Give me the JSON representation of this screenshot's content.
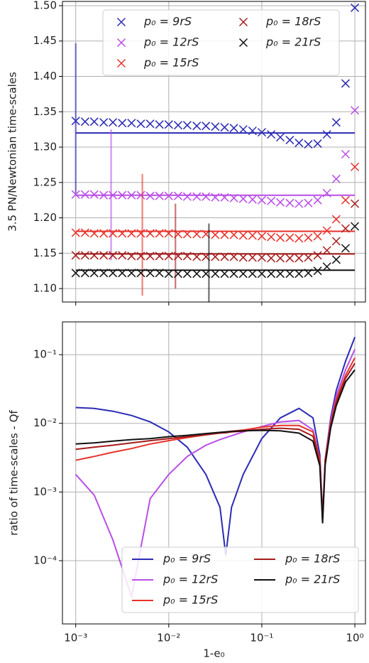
{
  "chart_data": [
    {
      "type": "scatter",
      "ylabel": "3.5 PN/Newtonian time-scales",
      "log_x": true,
      "grid": true,
      "legend": "upper center",
      "xlim": [
        0.00072,
        1.3
      ],
      "ylim": [
        1.081,
        1.506
      ],
      "yticks": [
        {
          "value": 1.1,
          "label": "1.10"
        },
        {
          "value": 1.15,
          "label": "1.15"
        },
        {
          "value": 1.2,
          "label": "1.20"
        },
        {
          "value": 1.25,
          "label": "1.25"
        },
        {
          "value": 1.3,
          "label": "1.30"
        },
        {
          "value": 1.35,
          "label": "1.35"
        },
        {
          "value": 1.4,
          "label": "1.40"
        },
        {
          "value": 1.45,
          "label": "1.45"
        },
        {
          "value": 1.5,
          "label": "1.50"
        }
      ],
      "xticks": [
        0.001,
        0.01,
        0.1,
        1
      ],
      "x": [
        0.001,
        0.00126,
        0.00158,
        0.002,
        0.00251,
        0.00316,
        0.00398,
        0.00501,
        0.00631,
        0.00794,
        0.01,
        0.0126,
        0.0158,
        0.02,
        0.0251,
        0.0316,
        0.0398,
        0.0501,
        0.0631,
        0.0794,
        0.1,
        0.126,
        0.158,
        0.2,
        0.251,
        0.316,
        0.398,
        0.501,
        0.631,
        0.794,
        1.0
      ],
      "series": [
        {
          "name": "p₀ = 9rS",
          "color": "#2b2bb5",
          "ref_value": 1.32,
          "range": {
            "x": 0.001,
            "low": 1.235,
            "high": 1.447
          },
          "values": [
            1.337,
            1.336,
            1.336,
            1.335,
            1.335,
            1.334,
            1.334,
            1.333,
            1.333,
            1.332,
            1.332,
            1.331,
            1.331,
            1.33,
            1.33,
            1.329,
            1.328,
            1.327,
            1.325,
            1.323,
            1.321,
            1.318,
            1.314,
            1.31,
            1.306,
            1.304,
            1.305,
            1.318,
            1.335,
            1.39,
            1.497
          ]
        },
        {
          "name": "p₀ = 12rS",
          "color": "#b94ee6",
          "ref_value": 1.232,
          "range": {
            "x": 0.0024,
            "low": 1.14,
            "high": 1.325
          },
          "values": [
            1.233,
            1.233,
            1.233,
            1.232,
            1.232,
            1.232,
            1.232,
            1.232,
            1.231,
            1.231,
            1.231,
            1.231,
            1.23,
            1.23,
            1.23,
            1.229,
            1.229,
            1.228,
            1.227,
            1.226,
            1.225,
            1.224,
            1.222,
            1.221,
            1.22,
            1.221,
            1.225,
            1.235,
            1.255,
            1.29,
            1.352
          ]
        },
        {
          "name": "p₀ = 15rS",
          "color": "#e8322a",
          "ref_value": 1.181,
          "range": {
            "x": 0.0052,
            "low": 1.09,
            "high": 1.262
          },
          "values": [
            1.179,
            1.179,
            1.178,
            1.178,
            1.178,
            1.178,
            1.178,
            1.178,
            1.178,
            1.178,
            1.178,
            1.177,
            1.177,
            1.177,
            1.177,
            1.176,
            1.176,
            1.176,
            1.175,
            1.175,
            1.174,
            1.173,
            1.172,
            1.172,
            1.171,
            1.172,
            1.174,
            1.182,
            1.198,
            1.225,
            1.272
          ]
        },
        {
          "name": "p₀ = 18rS",
          "color": "#a61c1c",
          "ref_value": 1.149,
          "range": {
            "x": 0.0118,
            "low": 1.1,
            "high": 1.22
          },
          "values": [
            1.147,
            1.147,
            1.147,
            1.147,
            1.147,
            1.147,
            1.146,
            1.146,
            1.146,
            1.146,
            1.146,
            1.146,
            1.146,
            1.145,
            1.145,
            1.145,
            1.145,
            1.145,
            1.144,
            1.144,
            1.144,
            1.143,
            1.143,
            1.143,
            1.143,
            1.144,
            1.147,
            1.154,
            1.167,
            1.185,
            1.22
          ]
        },
        {
          "name": "p₀ = 21rS",
          "color": "#111111",
          "ref_value": 1.126,
          "range": {
            "x": 0.027,
            "low": 1.081,
            "high": 1.192
          },
          "values": [
            1.122,
            1.122,
            1.122,
            1.122,
            1.122,
            1.122,
            1.122,
            1.122,
            1.122,
            1.122,
            1.121,
            1.121,
            1.121,
            1.121,
            1.121,
            1.121,
            1.121,
            1.121,
            1.121,
            1.121,
            1.121,
            1.121,
            1.121,
            1.121,
            1.121,
            1.122,
            1.125,
            1.131,
            1.141,
            1.157,
            1.188
          ]
        }
      ]
    },
    {
      "type": "line",
      "ylabel": "ratio of time-scales - Qf",
      "xlabel": "1-e₀",
      "log_x": true,
      "log_y": true,
      "grid": true,
      "legend": "lower right",
      "xlim": [
        0.00072,
        1.3
      ],
      "ylim": [
        1.2e-05,
        0.3
      ],
      "xticks": [
        {
          "value": 0.001,
          "label": "10⁻³"
        },
        {
          "value": 0.01,
          "label": "10⁻²"
        },
        {
          "value": 0.1,
          "label": "10⁻¹"
        },
        {
          "value": 1,
          "label": "10⁰"
        }
      ],
      "yticks": [
        {
          "value": 0.0001,
          "label": "10⁻⁴"
        },
        {
          "value": 0.001,
          "label": "10⁻³"
        },
        {
          "value": 0.01,
          "label": "10⁻²"
        },
        {
          "value": 0.1,
          "label": "10⁻¹"
        }
      ],
      "x": [
        0.001,
        0.00158,
        0.00251,
        0.00398,
        0.00631,
        0.01,
        0.0158,
        0.0251,
        0.0355,
        0.041,
        0.0473,
        0.0631,
        0.1,
        0.158,
        0.251,
        0.355,
        0.42,
        0.45,
        0.48,
        0.55,
        0.631,
        0.794,
        1.0
      ],
      "series": [
        {
          "name": "p₀ = 9rS",
          "color": "#2b2bb5",
          "values": [
            0.017,
            0.0165,
            0.015,
            0.013,
            0.0105,
            0.0075,
            0.0045,
            0.0018,
            0.0006,
            0.00012,
            0.0006,
            0.0018,
            0.006,
            0.012,
            0.0165,
            0.012,
            0.0035,
            0.00045,
            0.003,
            0.012,
            0.03,
            0.08,
            0.18
          ]
        },
        {
          "name": "p₀ = 12rS",
          "color": "#b94ee6",
          "values": [
            0.0018,
            0.0009,
            0.0002,
            3e-05,
            0.0008,
            0.0018,
            0.0033,
            0.0048,
            0.0058,
            0.0062,
            0.0066,
            0.0075,
            0.009,
            0.0105,
            0.011,
            0.008,
            0.003,
            0.0004,
            0.003,
            0.011,
            0.025,
            0.06,
            0.12
          ]
        },
        {
          "name": "p₀ = 15rS",
          "color": "#e8322a",
          "values": [
            0.0029,
            0.0033,
            0.0038,
            0.0043,
            0.005,
            0.0056,
            0.0062,
            0.0068,
            0.0073,
            0.0075,
            0.0077,
            0.008,
            0.0088,
            0.0093,
            0.0093,
            0.0075,
            0.003,
            0.0004,
            0.003,
            0.01,
            0.022,
            0.05,
            0.09
          ]
        },
        {
          "name": "p₀ = 18rS",
          "color": "#a61c1c",
          "values": [
            0.0042,
            0.0045,
            0.0048,
            0.0052,
            0.0056,
            0.006,
            0.0064,
            0.0068,
            0.0072,
            0.0073,
            0.0075,
            0.0077,
            0.0082,
            0.0085,
            0.0082,
            0.0065,
            0.0027,
            0.0004,
            0.0028,
            0.0095,
            0.02,
            0.045,
            0.075
          ]
        },
        {
          "name": "p₀ = 21rS",
          "color": "#111111",
          "values": [
            0.005,
            0.0052,
            0.0055,
            0.0058,
            0.006,
            0.0064,
            0.0067,
            0.0071,
            0.0074,
            0.0075,
            0.0076,
            0.0078,
            0.0079,
            0.0078,
            0.0072,
            0.0055,
            0.0024,
            0.00035,
            0.0025,
            0.0085,
            0.018,
            0.04,
            0.06
          ]
        }
      ]
    }
  ]
}
